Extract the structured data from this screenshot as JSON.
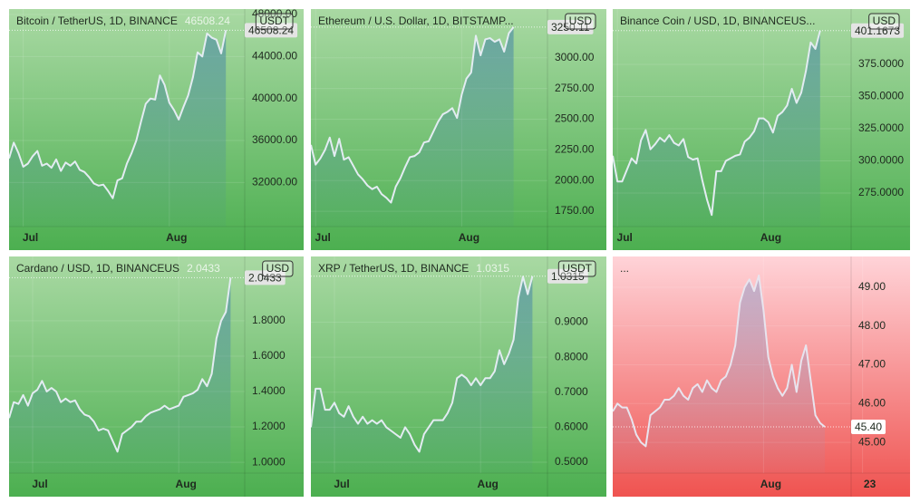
{
  "chart_data": [
    {
      "type": "line",
      "title": "Bitcoin / TetherUS, 1D, BINANCE",
      "title_price": "46508.24",
      "currency": "USDT",
      "price_label": "46508.24",
      "background": [
        "#a9d9a3",
        "#4caf50"
      ],
      "line_color": "#e3ecf2",
      "area_color": "#3f7fa8",
      "grid": true,
      "categories": [
        null,
        null,
        null,
        "Jul",
        null,
        null,
        null,
        null,
        null,
        null,
        null,
        null,
        null,
        null,
        null,
        null,
        null,
        null,
        null,
        null,
        null,
        null,
        null,
        null,
        null,
        null,
        null,
        null,
        null,
        null,
        null,
        null,
        null,
        null,
        "Aug",
        null,
        null,
        null,
        null,
        null,
        null,
        null,
        null,
        null,
        null,
        null,
        null
      ],
      "values": [
        34300,
        35800,
        34800,
        33500,
        33800,
        34500,
        35000,
        33600,
        33800,
        33400,
        34200,
        33100,
        33900,
        33600,
        34000,
        33200,
        33000,
        32500,
        31900,
        31700,
        31800,
        31200,
        30500,
        32200,
        32400,
        33800,
        34800,
        36000,
        37800,
        39500,
        40000,
        39900,
        42200,
        41300,
        39600,
        38900,
        38000,
        39200,
        40300,
        42000,
        44400,
        44000,
        46200,
        45800,
        45600,
        44300,
        46508.24
      ],
      "ylim": [
        27800,
        48350
      ],
      "yticks": [
        {
          "value": 32000,
          "label": "32000.00"
        },
        {
          "value": 36000,
          "label": "36000.00"
        },
        {
          "value": 40000,
          "label": "40000.00"
        },
        {
          "value": 44000,
          "label": "44000.00"
        },
        {
          "value": 48000,
          "label": "48000.00"
        }
      ]
    },
    {
      "type": "line",
      "title": "Ethereum / U.S. Dollar, 1D, BITSTAMP...",
      "currency": "USD",
      "price_label": "3250.11",
      "background": [
        "#a9d9a3",
        "#4caf50"
      ],
      "line_color": "#e3ecf2",
      "area_color": "#3f7fa8",
      "grid": true,
      "categories": [
        null,
        "Jul",
        null,
        null,
        null,
        null,
        null,
        null,
        null,
        null,
        null,
        null,
        null,
        null,
        null,
        null,
        null,
        null,
        null,
        null,
        null,
        null,
        null,
        null,
        null,
        null,
        null,
        null,
        null,
        null,
        null,
        null,
        "Aug",
        null,
        null,
        null,
        null,
        null,
        null,
        null,
        null,
        null,
        null,
        null
      ],
      "values": [
        2290,
        2130,
        2180,
        2250,
        2350,
        2200,
        2340,
        2170,
        2190,
        2120,
        2050,
        2010,
        1960,
        1930,
        1950,
        1890,
        1860,
        1820,
        1950,
        2020,
        2110,
        2190,
        2200,
        2230,
        2310,
        2320,
        2400,
        2480,
        2540,
        2560,
        2590,
        2510,
        2700,
        2830,
        2880,
        3180,
        3020,
        3150,
        3160,
        3130,
        3150,
        3050,
        3200,
        3250.11
      ],
      "ylim": [
        1625,
        3382
      ],
      "yticks": [
        {
          "value": 1750,
          "label": "1750.00"
        },
        {
          "value": 2000,
          "label": "2000.00"
        },
        {
          "value": 2250,
          "label": "2250.00"
        },
        {
          "value": 2500,
          "label": "2500.00"
        },
        {
          "value": 2750,
          "label": "2750.00"
        },
        {
          "value": 3000,
          "label": "3000.00"
        }
      ]
    },
    {
      "type": "line",
      "title": "Binance Coin / USD, 1D, BINANCEUS...",
      "currency": "USD",
      "price_label": "401.1673",
      "background": [
        "#a9d9a3",
        "#4caf50"
      ],
      "line_color": "#e3ecf2",
      "area_color": "#3f7fa8",
      "grid": true,
      "categories": [
        null,
        "Jul",
        null,
        null,
        null,
        null,
        null,
        null,
        null,
        null,
        null,
        null,
        null,
        null,
        null,
        null,
        null,
        null,
        null,
        null,
        null,
        null,
        null,
        null,
        null,
        null,
        null,
        null,
        null,
        null,
        null,
        null,
        "Aug",
        null,
        null,
        null,
        null,
        null,
        null,
        null,
        null,
        null,
        null,
        null,
        null
      ],
      "values": [
        304,
        284,
        284,
        293,
        302,
        298,
        316,
        324,
        309,
        313,
        318,
        315,
        320,
        314,
        312,
        317,
        303,
        301,
        302,
        285,
        270,
        258,
        292,
        292,
        300,
        302,
        304,
        305,
        315,
        318,
        323,
        333,
        333,
        330,
        322,
        335,
        338,
        343,
        356,
        345,
        353,
        370,
        392,
        387,
        401.1673
      ],
      "ylim": [
        249,
        416.5
      ],
      "yticks": [
        {
          "value": 275,
          "label": "275.0000"
        },
        {
          "value": 300,
          "label": "300.0000"
        },
        {
          "value": 325,
          "label": "325.0000"
        },
        {
          "value": 350,
          "label": "350.0000"
        },
        {
          "value": 375,
          "label": "375.0000"
        }
      ]
    },
    {
      "type": "line",
      "title": "Cardano / USD, 1D, BINANCEUS",
      "title_price": "2.0433",
      "currency": "USD",
      "price_label": "2.0433",
      "background": [
        "#a9d9a3",
        "#4caf50"
      ],
      "line_color": "#e3ecf2",
      "area_color": "#3f7fa8",
      "grid": true,
      "categories": [
        null,
        null,
        null,
        null,
        null,
        "Jul",
        null,
        null,
        null,
        null,
        null,
        null,
        null,
        null,
        null,
        null,
        null,
        null,
        null,
        null,
        null,
        null,
        null,
        null,
        null,
        null,
        null,
        null,
        null,
        null,
        null,
        null,
        null,
        null,
        null,
        null,
        "Aug",
        null,
        null,
        null,
        null,
        null,
        null,
        null,
        null,
        null,
        null,
        null
      ],
      "values": [
        1.25,
        1.34,
        1.33,
        1.38,
        1.32,
        1.39,
        1.41,
        1.46,
        1.4,
        1.42,
        1.4,
        1.34,
        1.36,
        1.34,
        1.35,
        1.3,
        1.27,
        1.26,
        1.23,
        1.18,
        1.19,
        1.18,
        1.12,
        1.06,
        1.16,
        1.18,
        1.2,
        1.23,
        1.23,
        1.26,
        1.28,
        1.29,
        1.3,
        1.32,
        1.3,
        1.31,
        1.32,
        1.37,
        1.38,
        1.39,
        1.41,
        1.47,
        1.43,
        1.5,
        1.7,
        1.8,
        1.85,
        2.0433
      ],
      "ylim": [
        0.939,
        2.153
      ],
      "yticks": [
        {
          "value": 1,
          "label": "1.0000"
        },
        {
          "value": 1.2,
          "label": "1.2000"
        },
        {
          "value": 1.4,
          "label": "1.4000"
        },
        {
          "value": 1.6,
          "label": "1.6000"
        },
        {
          "value": 1.8,
          "label": "1.8000"
        }
      ]
    },
    {
      "type": "line",
      "title": "XRP / TetherUS, 1D, BINANCE",
      "title_price": "1.0315",
      "currency": "USDT",
      "price_label": "1.0315",
      "background": [
        "#a9d9a3",
        "#4caf50"
      ],
      "line_color": "#e3ecf2",
      "area_color": "#3f7fa8",
      "grid": true,
      "categories": [
        null,
        null,
        null,
        null,
        null,
        "Jul",
        null,
        null,
        null,
        null,
        null,
        null,
        null,
        null,
        null,
        null,
        null,
        null,
        null,
        null,
        null,
        null,
        null,
        null,
        null,
        null,
        null,
        null,
        null,
        null,
        null,
        null,
        null,
        null,
        null,
        null,
        "Aug",
        null,
        null,
        null,
        null,
        null,
        null,
        null,
        null,
        null,
        null,
        null
      ],
      "values": [
        0.6,
        0.71,
        0.71,
        0.65,
        0.65,
        0.67,
        0.64,
        0.63,
        0.66,
        0.63,
        0.61,
        0.63,
        0.61,
        0.62,
        0.61,
        0.62,
        0.6,
        0.59,
        0.58,
        0.57,
        0.6,
        0.58,
        0.55,
        0.53,
        0.58,
        0.6,
        0.62,
        0.62,
        0.62,
        0.64,
        0.67,
        0.74,
        0.75,
        0.74,
        0.72,
        0.74,
        0.72,
        0.74,
        0.74,
        0.76,
        0.82,
        0.78,
        0.81,
        0.85,
        0.97,
        1.03,
        0.98,
        1.0315
      ],
      "ylim": [
        0.469,
        1.0825
      ],
      "yticks": [
        {
          "value": 0.5,
          "label": "0.5000"
        },
        {
          "value": 0.6,
          "label": "0.6000"
        },
        {
          "value": 0.7,
          "label": "0.7000"
        },
        {
          "value": 0.8,
          "label": "0.8000"
        },
        {
          "value": 0.9,
          "label": "0.9000"
        }
      ]
    },
    {
      "type": "line",
      "title": "...",
      "price_label": "45.40",
      "background": [
        "#ffd3d8",
        "#ef5350"
      ],
      "line_color": "#e8e4ee",
      "area_color": "#8f9cc8",
      "grid": true,
      "categories": [
        null,
        null,
        null,
        null,
        null,
        null,
        null,
        null,
        null,
        null,
        null,
        null,
        null,
        null,
        null,
        null,
        null,
        null,
        null,
        null,
        null,
        null,
        null,
        null,
        null,
        null,
        null,
        null,
        null,
        null,
        null,
        null,
        "Aug",
        null,
        null,
        null,
        null,
        null,
        null,
        null,
        null,
        null,
        null,
        null,
        null,
        null,
        null,
        null,
        null,
        null,
        null,
        null,
        null,
        "23"
      ],
      "values": [
        45.8,
        46.0,
        45.9,
        45.9,
        45.6,
        45.2,
        45.0,
        44.9,
        45.7,
        45.8,
        45.9,
        46.1,
        46.1,
        46.2,
        46.4,
        46.2,
        46.1,
        46.4,
        46.5,
        46.3,
        46.6,
        46.4,
        46.3,
        46.6,
        46.7,
        47.0,
        47.5,
        48.6,
        49.0,
        49.2,
        48.9,
        49.3,
        48.4,
        47.2,
        46.7,
        46.4,
        46.2,
        46.4,
        47.0,
        46.3,
        47.1,
        47.5,
        46.6,
        45.7,
        45.5,
        45.4,
        null,
        null,
        null,
        null,
        null,
        null,
        null,
        null
      ],
      "ylim": [
        44.209,
        49.744
      ],
      "yticks": [
        {
          "value": 45,
          "label": "45.00"
        },
        {
          "value": 46,
          "label": "46.00"
        },
        {
          "value": 47,
          "label": "47.00"
        },
        {
          "value": 48,
          "label": "48.00"
        },
        {
          "value": 49,
          "label": "49.00"
        }
      ]
    }
  ]
}
